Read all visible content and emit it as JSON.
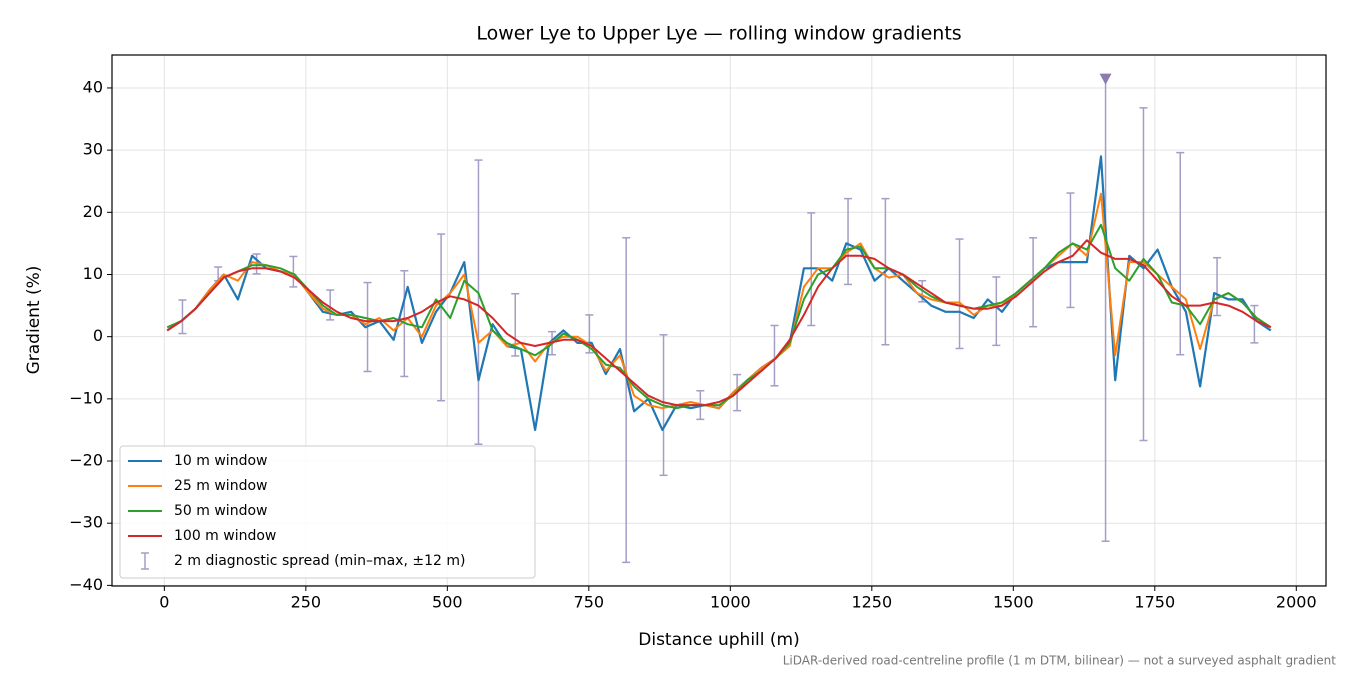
{
  "chart_data": {
    "type": "line",
    "title": "Lower Lye to Upper Lye — rolling window gradients",
    "xlabel": "Distance uphill (m)",
    "ylabel": "Gradient (%)",
    "footnote": "LiDAR-derived road-centreline profile (1 m DTM, bilinear) — not a surveyed asphalt gradient",
    "grid": true,
    "legend": "lower left",
    "xlim": [
      -92.5,
      2052.5
    ],
    "ylim": [
      -40.1,
      45.3
    ],
    "xticks": [
      0,
      250,
      500,
      750,
      1000,
      1250,
      1500,
      1750,
      2000
    ],
    "yticks": [
      {
        "value": -40,
        "label": "−40"
      },
      {
        "value": -30,
        "label": "−30"
      },
      {
        "value": -20,
        "label": "−20"
      },
      {
        "value": -10,
        "label": "−10"
      },
      0,
      10,
      20,
      30,
      40
    ],
    "x": [
      5,
      30,
      55,
      80,
      105,
      130,
      155,
      180,
      205,
      230,
      255,
      280,
      305,
      330,
      355,
      380,
      405,
      430,
      455,
      480,
      505,
      530,
      555,
      580,
      605,
      630,
      655,
      680,
      705,
      730,
      755,
      780,
      805,
      830,
      855,
      880,
      905,
      930,
      955,
      980,
      1005,
      1030,
      1055,
      1080,
      1105,
      1130,
      1155,
      1180,
      1205,
      1230,
      1255,
      1280,
      1305,
      1330,
      1355,
      1380,
      1405,
      1430,
      1455,
      1480,
      1505,
      1530,
      1555,
      1580,
      1605,
      1630,
      1655,
      1680,
      1705,
      1730,
      1755,
      1780,
      1805,
      1830,
      1855,
      1880,
      1905,
      1930,
      1955
    ],
    "series": [
      {
        "name": "10 m window",
        "color": "#1f77b4",
        "values": [
          1,
          2.5,
          4.5,
          7.5,
          10,
          6,
          13,
          11,
          10.5,
          10,
          7,
          4,
          3.5,
          4,
          1.5,
          2.5,
          -0.5,
          8,
          -1,
          4,
          7,
          12,
          -7,
          2,
          -1.5,
          -2,
          -15,
          -1,
          1,
          -1,
          -1,
          -6,
          -2,
          -12,
          -10,
          -15,
          -11,
          -11.5,
          -11,
          -11.5,
          -9,
          -7,
          -5,
          -3.5,
          -1,
          11,
          11,
          9,
          15,
          14,
          9,
          11,
          9,
          7,
          5,
          4,
          4,
          3,
          6,
          4,
          7,
          9,
          11,
          12,
          12,
          12,
          29,
          -7,
          13,
          11,
          14,
          8,
          4,
          -8,
          7,
          6,
          6,
          2.5,
          1
        ]
      },
      {
        "name": "25 m window",
        "color": "#ff7f0e",
        "values": [
          1,
          2.5,
          4.5,
          7.5,
          10,
          9,
          12,
          11.5,
          10.5,
          10,
          7,
          4.5,
          3.5,
          3.5,
          2,
          3,
          1,
          3,
          0,
          5,
          7,
          10,
          -1,
          1,
          -1.5,
          -1,
          -4,
          -1,
          0,
          0,
          -1.5,
          -5.5,
          -3,
          -9.5,
          -11,
          -11.5,
          -11,
          -10.5,
          -11,
          -11.5,
          -9,
          -7,
          -5,
          -3.5,
          -1.5,
          8,
          11,
          11,
          13.5,
          15,
          11,
          9.5,
          10,
          7,
          6,
          5.5,
          5.5,
          3.5,
          5,
          5,
          7,
          9,
          11,
          13,
          15,
          13,
          23,
          -3,
          12,
          12,
          10,
          8,
          6,
          -2,
          6,
          7,
          5.5,
          3,
          1.5
        ]
      },
      {
        "name": "50 m window",
        "color": "#2ca02c",
        "values": [
          1.5,
          2.5,
          4.5,
          7,
          9.5,
          10.5,
          11.5,
          11.5,
          11,
          10,
          7.5,
          5,
          3.5,
          3.5,
          3,
          2.5,
          3,
          2,
          1.5,
          6,
          3,
          9,
          7,
          1,
          -1,
          -2,
          -3,
          -1.5,
          0.5,
          -0.5,
          -2,
          -4.5,
          -5,
          -8,
          -10,
          -11,
          -11.5,
          -11,
          -11,
          -11,
          -9.5,
          -7,
          -5.5,
          -3.5,
          -1,
          6,
          10,
          11,
          14,
          14.5,
          11,
          11,
          10,
          8,
          6.5,
          5.5,
          5,
          4.5,
          5,
          5.5,
          7,
          9,
          11,
          13.5,
          15,
          14,
          18,
          11,
          9,
          12.5,
          10,
          5.5,
          5,
          2,
          6,
          7,
          5.5,
          3,
          1.5
        ]
      },
      {
        "name": "100 m window",
        "color": "#d62728",
        "values": [
          1,
          2.5,
          4.5,
          7,
          9.5,
          10.5,
          11,
          11,
          10.5,
          9.5,
          7.5,
          5.5,
          4,
          3,
          2.5,
          2.5,
          2.5,
          3,
          4,
          5.5,
          6.5,
          6,
          5,
          3,
          0.5,
          -1,
          -1.5,
          -1,
          -0.5,
          -0.5,
          -1.5,
          -3.5,
          -5.5,
          -7.5,
          -9.5,
          -10.5,
          -11,
          -11,
          -11,
          -10.5,
          -9.5,
          -7.5,
          -5.5,
          -3.5,
          -0.5,
          3.5,
          8,
          11,
          13,
          13,
          12.5,
          11,
          10,
          8.5,
          7,
          5.5,
          5,
          4.5,
          4.5,
          5,
          6.5,
          8.5,
          10.5,
          12,
          13,
          15.5,
          13.5,
          12.5,
          12.5,
          11.5,
          9,
          6.5,
          5,
          5,
          5.5,
          5,
          4,
          2.5,
          1.5
        ]
      }
    ],
    "errorbars": {
      "name": "2 m diagnostic spread (min–max, ±12 m)",
      "color": "#a49dc6",
      "x": [
        32,
        95,
        163,
        228,
        293,
        359,
        424,
        489,
        555,
        620,
        685,
        751,
        816,
        882,
        947,
        1012,
        1078,
        1143,
        1208,
        1274,
        1339,
        1405,
        1470,
        1535,
        1601,
        1663,
        1730,
        1795,
        1860,
        1926
      ],
      "low": [
        0.5,
        9.0,
        10.1,
        8.0,
        2.7,
        -5.6,
        -6.4,
        -10.3,
        -17.3,
        -3.1,
        -2.9,
        -2.6,
        -36.3,
        -22.3,
        -13.3,
        -11.9,
        -7.9,
        1.8,
        8.4,
        -1.3,
        5.6,
        -1.9,
        -1.4,
        1.6,
        4.7,
        -32.9,
        -16.7,
        -2.9,
        3.4,
        -1.0
      ],
      "high": [
        5.9,
        11.2,
        13.3,
        12.9,
        7.5,
        8.7,
        10.6,
        16.5,
        28.4,
        6.9,
        0.8,
        3.5,
        15.9,
        0.3,
        -8.7,
        -6.1,
        1.8,
        19.9,
        22.2,
        22.2,
        9.0,
        15.7,
        9.6,
        15.9,
        23.1,
        41.9,
        36.8,
        29.6,
        12.7,
        5.0
      ]
    },
    "peak_marker": {
      "x": 1663,
      "y": 41.5,
      "color": "#8a7bb0"
    }
  }
}
